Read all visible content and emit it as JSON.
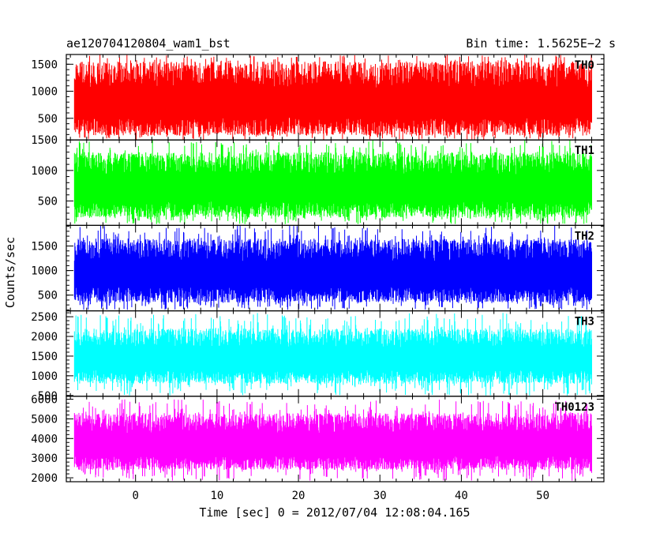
{
  "header": {
    "title": "ae120704120804_wam1_bst",
    "bin_time": "Bin time: 1.5625E−2 s"
  },
  "chart_data": {
    "type": "line",
    "xlabel": "Time [sec] 0 = 2012/07/04 12:08:04.165",
    "ylabel": "Counts/sec",
    "xlim": [
      -8.5,
      57.5
    ],
    "data_x_range": [
      -7.5,
      56.0
    ],
    "x_ticks": [
      0,
      10,
      20,
      30,
      40,
      50
    ],
    "x_tick_labels": [
      "0",
      "10",
      "20",
      "30",
      "40",
      "50"
    ],
    "x_minor_step": 2,
    "panels": [
      {
        "name": "TH0",
        "color": "#ff0000",
        "ylim": [
          100,
          1680
        ],
        "y_ticks": [
          500,
          1000,
          1500
        ],
        "y_tick_labels": [
          "500",
          "1000",
          "1500"
        ],
        "band": [
          180,
          1550
        ],
        "spike_range": [
          1450,
          1680
        ],
        "dip_range": [
          100,
          260
        ]
      },
      {
        "name": "TH1",
        "color": "#00ff00",
        "ylim": [
          100,
          1500
        ],
        "y_ticks": [
          500,
          1000,
          1500
        ],
        "y_tick_labels": [
          "500",
          "1000",
          "1500"
        ],
        "band": [
          230,
          1300
        ],
        "spike_range": [
          1200,
          1500
        ],
        "dip_range": [
          120,
          260
        ]
      },
      {
        "name": "TH2",
        "color": "#0000ff",
        "ylim": [
          180,
          1920
        ],
        "y_ticks": [
          500,
          1000,
          1500
        ],
        "y_tick_labels": [
          "500",
          "1000",
          "1500"
        ],
        "band": [
          350,
          1650
        ],
        "spike_range": [
          1600,
          1920
        ],
        "dip_range": [
          200,
          380
        ]
      },
      {
        "name": "TH3",
        "color": "#00ffff",
        "ylim": [
          480,
          2650
        ],
        "y_ticks": [
          500,
          1000,
          1500,
          2000,
          2500
        ],
        "y_tick_labels": [
          "500",
          "1000",
          "1500",
          "2000",
          "2500"
        ],
        "band": [
          800,
          2200
        ],
        "spike_range": [
          2100,
          2600
        ],
        "dip_range": [
          500,
          850
        ]
      },
      {
        "name": "TH0123",
        "color": "#ff00ff",
        "ylim": [
          1800,
          6150
        ],
        "y_ticks": [
          2000,
          3000,
          4000,
          5000,
          6000
        ],
        "y_tick_labels": [
          "2000",
          "3000",
          "4000",
          "5000",
          "6000"
        ],
        "band": [
          2400,
          5300
        ],
        "spike_range": [
          5200,
          6000
        ],
        "dip_range": [
          1850,
          2500
        ]
      }
    ]
  }
}
